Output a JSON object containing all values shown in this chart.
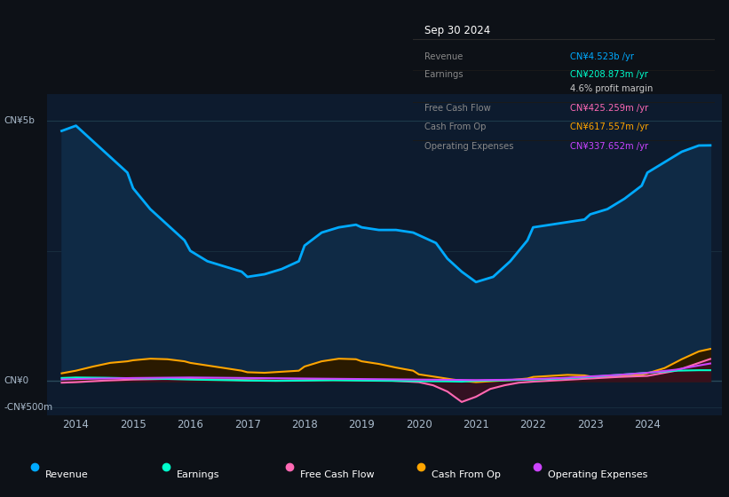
{
  "bg_color": "#0d1117",
  "chart_bg": "#0d1b2e",
  "title_box": {
    "header": "Sep 30 2024",
    "rows": [
      {
        "label": "Revenue",
        "value": "CN¥4.523b /yr",
        "value_color": "#00aaff"
      },
      {
        "label": "Earnings",
        "value": "CN¥208.873m /yr",
        "value_color": "#00ffcc"
      },
      {
        "label": "",
        "value": "4.6% profit margin",
        "value_color": "#cccccc"
      },
      {
        "label": "Free Cash Flow",
        "value": "CN¥425.259m /yr",
        "value_color": "#ff69b4"
      },
      {
        "label": "Cash From Op",
        "value": "CN¥617.557m /yr",
        "value_color": "#ffa500"
      },
      {
        "label": "Operating Expenses",
        "value": "CN¥337.652m /yr",
        "value_color": "#cc44ff"
      }
    ]
  },
  "ylabel_top": "CN¥5b",
  "ylabel_zero": "CN¥0",
  "ylabel_bottom": "-CN¥500m",
  "ylim": [
    -650,
    5500
  ],
  "xlim": [
    2013.5,
    2025.3
  ],
  "xticks": [
    2014,
    2015,
    2016,
    2017,
    2018,
    2019,
    2020,
    2021,
    2022,
    2023,
    2024
  ],
  "legend": [
    {
      "label": "Revenue",
      "color": "#00aaff"
    },
    {
      "label": "Earnings",
      "color": "#00ffcc"
    },
    {
      "label": "Free Cash Flow",
      "color": "#ff69b4"
    },
    {
      "label": "Cash From Op",
      "color": "#ffa500"
    },
    {
      "label": "Operating Expenses",
      "color": "#cc44ff"
    }
  ],
  "revenue": {
    "x": [
      2013.75,
      2014.0,
      2014.3,
      2014.6,
      2014.9,
      2015.0,
      2015.3,
      2015.6,
      2015.9,
      2016.0,
      2016.3,
      2016.6,
      2016.9,
      2017.0,
      2017.3,
      2017.6,
      2017.9,
      2018.0,
      2018.3,
      2018.6,
      2018.9,
      2019.0,
      2019.3,
      2019.6,
      2019.9,
      2020.0,
      2020.3,
      2020.5,
      2020.75,
      2021.0,
      2021.3,
      2021.6,
      2021.9,
      2022.0,
      2022.3,
      2022.6,
      2022.9,
      2023.0,
      2023.3,
      2023.6,
      2023.9,
      2024.0,
      2024.3,
      2024.6,
      2024.9,
      2025.1
    ],
    "y": [
      4800,
      4900,
      4600,
      4300,
      4000,
      3700,
      3300,
      3000,
      2700,
      2500,
      2300,
      2200,
      2100,
      2000,
      2050,
      2150,
      2300,
      2600,
      2850,
      2950,
      3000,
      2950,
      2900,
      2900,
      2850,
      2800,
      2650,
      2350,
      2100,
      1900,
      2000,
      2300,
      2700,
      2950,
      3000,
      3050,
      3100,
      3200,
      3300,
      3500,
      3750,
      4000,
      4200,
      4400,
      4520,
      4523
    ],
    "color": "#00aaff",
    "fill_color": "#0f2a45",
    "linewidth": 2.0
  },
  "earnings": {
    "x": [
      2013.75,
      2014.0,
      2014.5,
      2015.0,
      2015.5,
      2016.0,
      2016.5,
      2017.0,
      2017.5,
      2018.0,
      2018.5,
      2019.0,
      2019.5,
      2020.0,
      2020.5,
      2020.75,
      2021.0,
      2021.5,
      2022.0,
      2022.5,
      2023.0,
      2023.5,
      2024.0,
      2024.5,
      2024.9,
      2025.1
    ],
    "y": [
      60,
      70,
      65,
      55,
      45,
      30,
      20,
      10,
      5,
      10,
      15,
      10,
      5,
      0,
      -5,
      -10,
      5,
      15,
      30,
      50,
      80,
      120,
      160,
      200,
      209,
      209
    ],
    "color": "#00ffcc",
    "linewidth": 1.5
  },
  "free_cash_flow": {
    "x": [
      2013.75,
      2014.0,
      2014.5,
      2015.0,
      2015.5,
      2016.0,
      2016.5,
      2017.0,
      2017.5,
      2018.0,
      2018.5,
      2019.0,
      2019.5,
      2019.75,
      2020.0,
      2020.25,
      2020.5,
      2020.75,
      2021.0,
      2021.25,
      2021.5,
      2021.75,
      2022.0,
      2022.5,
      2023.0,
      2023.5,
      2024.0,
      2024.5,
      2024.9,
      2025.1
    ],
    "y": [
      -30,
      -20,
      10,
      30,
      40,
      40,
      30,
      20,
      10,
      20,
      30,
      20,
      10,
      -5,
      -20,
      -80,
      -200,
      -400,
      -300,
      -150,
      -80,
      -30,
      -10,
      20,
      50,
      80,
      100,
      200,
      350,
      425
    ],
    "color": "#ff69b4",
    "fill_color": "#3a1020",
    "linewidth": 1.5
  },
  "cash_from_op": {
    "x": [
      2013.75,
      2014.0,
      2014.3,
      2014.6,
      2014.9,
      2015.0,
      2015.3,
      2015.6,
      2015.9,
      2016.0,
      2016.3,
      2016.6,
      2016.9,
      2017.0,
      2017.3,
      2017.6,
      2017.9,
      2018.0,
      2018.3,
      2018.6,
      2018.9,
      2019.0,
      2019.3,
      2019.6,
      2019.9,
      2020.0,
      2020.3,
      2020.6,
      2020.9,
      2021.0,
      2021.3,
      2021.6,
      2021.9,
      2022.0,
      2022.3,
      2022.6,
      2022.9,
      2023.0,
      2023.3,
      2023.6,
      2023.9,
      2024.0,
      2024.3,
      2024.6,
      2024.9,
      2025.1
    ],
    "y": [
      150,
      200,
      280,
      350,
      380,
      400,
      430,
      420,
      380,
      350,
      300,
      250,
      200,
      170,
      160,
      180,
      200,
      280,
      380,
      430,
      420,
      380,
      330,
      260,
      200,
      130,
      80,
      30,
      -10,
      -20,
      0,
      20,
      50,
      80,
      100,
      120,
      110,
      90,
      80,
      100,
      120,
      150,
      250,
      420,
      570,
      618
    ],
    "color": "#ffa500",
    "fill_color": "#2a1a00",
    "linewidth": 1.5
  },
  "operating_expenses": {
    "x": [
      2013.75,
      2014.0,
      2014.5,
      2015.0,
      2015.5,
      2016.0,
      2016.5,
      2017.0,
      2017.5,
      2018.0,
      2018.5,
      2019.0,
      2019.5,
      2020.0,
      2020.5,
      2021.0,
      2021.5,
      2022.0,
      2022.5,
      2023.0,
      2023.5,
      2024.0,
      2024.5,
      2024.9,
      2025.1
    ],
    "y": [
      30,
      40,
      50,
      60,
      65,
      70,
      65,
      60,
      55,
      50,
      45,
      40,
      35,
      30,
      25,
      20,
      25,
      40,
      60,
      90,
      120,
      160,
      220,
      300,
      338
    ],
    "color": "#cc44ff",
    "linewidth": 1.5
  }
}
